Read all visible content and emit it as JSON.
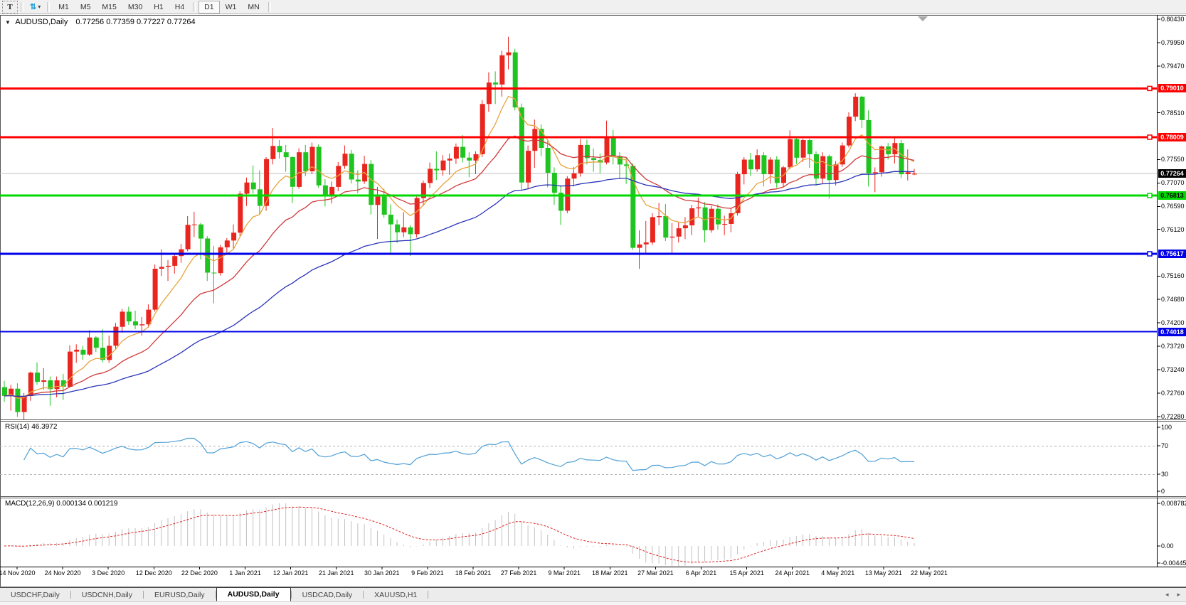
{
  "toolbar": {
    "text_tool": "T",
    "timeframes": [
      "M1",
      "M5",
      "M15",
      "M30",
      "H1",
      "H4",
      "D1",
      "W1",
      "MN"
    ],
    "active_timeframe": "D1"
  },
  "icons": {
    "symbol_dropdown": "▼",
    "arrows_tool": "⇅",
    "toolbar_caret": "▾",
    "tab_scroll_left": "◂",
    "tab_scroll_right": "▸"
  },
  "chart": {
    "title": "AUDUSD,Daily",
    "ohlc_text": "0.77256 0.77359 0.77227 0.77264"
  },
  "chart_data": {
    "type": "candlestick",
    "symbol": "AUDUSD",
    "period": "Daily",
    "colors": {
      "bull_candle": "#e8251f",
      "bear_candle": "#1fc420",
      "ma_fast": "#e8a33d",
      "ma_mid": "#d03a3a",
      "ma_slow": "#2a35b8",
      "rsi_line": "#4f9fd6",
      "macd_histogram": "#c2c2c2",
      "macd_signal": "#dd2222",
      "resistance_line": "#ff0000",
      "support_green_line": "#00d800",
      "support_blue_line": "#0000e8",
      "current_price_line": "#c0c0c0",
      "current_price_badge_bg": "#000000"
    },
    "candles": [
      [
        0.7288,
        0.7301,
        0.7258,
        0.727
      ],
      [
        0.727,
        0.7293,
        0.724,
        0.7285
      ],
      [
        0.7285,
        0.7296,
        0.7227,
        0.7237
      ],
      [
        0.7237,
        0.7276,
        0.7222,
        0.727
      ],
      [
        0.727,
        0.732,
        0.726,
        0.7318
      ],
      [
        0.7318,
        0.7339,
        0.7293,
        0.7299
      ],
      [
        0.7299,
        0.7327,
        0.7283,
        0.7302
      ],
      [
        0.7302,
        0.731,
        0.725,
        0.7284
      ],
      [
        0.7284,
        0.731,
        0.7267,
        0.7302
      ],
      [
        0.7302,
        0.7315,
        0.7262,
        0.7289
      ],
      [
        0.7289,
        0.7374,
        0.7287,
        0.7361
      ],
      [
        0.7361,
        0.7376,
        0.7338,
        0.7365
      ],
      [
        0.7365,
        0.7373,
        0.7344,
        0.7355
      ],
      [
        0.7355,
        0.7405,
        0.7352,
        0.739
      ],
      [
        0.739,
        0.7393,
        0.736,
        0.7369
      ],
      [
        0.7369,
        0.7407,
        0.7339,
        0.7344
      ],
      [
        0.7344,
        0.7394,
        0.7338,
        0.7373
      ],
      [
        0.7373,
        0.742,
        0.7365,
        0.7412
      ],
      [
        0.7412,
        0.7449,
        0.74,
        0.7443
      ],
      [
        0.7443,
        0.7453,
        0.7416,
        0.7423
      ],
      [
        0.7423,
        0.7445,
        0.7407,
        0.7415
      ],
      [
        0.7415,
        0.7432,
        0.7394,
        0.7417
      ],
      [
        0.7417,
        0.7458,
        0.741,
        0.7447
      ],
      [
        0.7447,
        0.754,
        0.7443,
        0.7531
      ],
      [
        0.7531,
        0.7571,
        0.7516,
        0.7535
      ],
      [
        0.7535,
        0.7549,
        0.7506,
        0.7537
      ],
      [
        0.7537,
        0.7563,
        0.7521,
        0.7557
      ],
      [
        0.7557,
        0.7582,
        0.7543,
        0.7571
      ],
      [
        0.7571,
        0.7639,
        0.7567,
        0.7621
      ],
      [
        0.7621,
        0.7648,
        0.7596,
        0.7622
      ],
      [
        0.7622,
        0.7625,
        0.755,
        0.7593
      ],
      [
        0.7593,
        0.7598,
        0.7506,
        0.7523
      ],
      [
        0.7523,
        0.7578,
        0.746,
        0.7522
      ],
      [
        0.7522,
        0.758,
        0.7517,
        0.7575
      ],
      [
        0.7575,
        0.7594,
        0.756,
        0.7589
      ],
      [
        0.7589,
        0.7622,
        0.7572,
        0.7605
      ],
      [
        0.7605,
        0.769,
        0.7598,
        0.7685
      ],
      [
        0.7685,
        0.7718,
        0.766,
        0.7708
      ],
      [
        0.7708,
        0.7743,
        0.7685,
        0.7694
      ],
      [
        0.7694,
        0.7733,
        0.7642,
        0.766
      ],
      [
        0.766,
        0.776,
        0.765,
        0.7756
      ],
      [
        0.7756,
        0.782,
        0.7745,
        0.7783
      ],
      [
        0.7783,
        0.7795,
        0.7757,
        0.777
      ],
      [
        0.777,
        0.7785,
        0.773,
        0.776
      ],
      [
        0.776,
        0.7762,
        0.7666,
        0.7699
      ],
      [
        0.7699,
        0.7778,
        0.7695,
        0.777
      ],
      [
        0.777,
        0.7785,
        0.7721,
        0.7731
      ],
      [
        0.7731,
        0.779,
        0.7725,
        0.7781
      ],
      [
        0.7781,
        0.7786,
        0.7697,
        0.7702
      ],
      [
        0.7702,
        0.7715,
        0.7659,
        0.7683
      ],
      [
        0.7683,
        0.771,
        0.7665,
        0.7699
      ],
      [
        0.7699,
        0.775,
        0.769,
        0.7742
      ],
      [
        0.7742,
        0.7784,
        0.7736,
        0.7767
      ],
      [
        0.7767,
        0.7775,
        0.7706,
        0.7714
      ],
      [
        0.7714,
        0.7733,
        0.7686,
        0.771
      ],
      [
        0.771,
        0.7763,
        0.7705,
        0.7746
      ],
      [
        0.7746,
        0.7754,
        0.7642,
        0.7662
      ],
      [
        0.7662,
        0.7699,
        0.7592,
        0.7679
      ],
      [
        0.7679,
        0.7695,
        0.7636,
        0.7642
      ],
      [
        0.7642,
        0.7663,
        0.7564,
        0.7622
      ],
      [
        0.7622,
        0.7632,
        0.7584,
        0.7606
      ],
      [
        0.7606,
        0.7647,
        0.7596,
        0.7616
      ],
      [
        0.7616,
        0.762,
        0.7557,
        0.7602
      ],
      [
        0.7602,
        0.7679,
        0.7595,
        0.7676
      ],
      [
        0.7676,
        0.7712,
        0.766,
        0.7707
      ],
      [
        0.7707,
        0.7749,
        0.7697,
        0.7736
      ],
      [
        0.7736,
        0.7772,
        0.7713,
        0.7733
      ],
      [
        0.7733,
        0.7764,
        0.7722,
        0.7753
      ],
      [
        0.7753,
        0.7767,
        0.7724,
        0.7757
      ],
      [
        0.7757,
        0.7788,
        0.7746,
        0.7781
      ],
      [
        0.7781,
        0.7805,
        0.7749,
        0.7759
      ],
      [
        0.7759,
        0.777,
        0.7719,
        0.7753
      ],
      [
        0.7753,
        0.7772,
        0.7725,
        0.7766
      ],
      [
        0.7766,
        0.7877,
        0.776,
        0.7869
      ],
      [
        0.7869,
        0.7934,
        0.7853,
        0.7913
      ],
      [
        0.7913,
        0.7936,
        0.7869,
        0.7909
      ],
      [
        0.7909,
        0.7978,
        0.7884,
        0.7969
      ],
      [
        0.7969,
        0.8007,
        0.794,
        0.7975
      ],
      [
        0.7975,
        0.7982,
        0.7856,
        0.7862
      ],
      [
        0.7862,
        0.787,
        0.7692,
        0.7708
      ],
      [
        0.7708,
        0.7784,
        0.7694,
        0.7773
      ],
      [
        0.7773,
        0.7837,
        0.7738,
        0.7818
      ],
      [
        0.7818,
        0.7827,
        0.7762,
        0.7779
      ],
      [
        0.7779,
        0.7794,
        0.7698,
        0.7728
      ],
      [
        0.7728,
        0.7739,
        0.7662,
        0.7687
      ],
      [
        0.7687,
        0.7702,
        0.7621,
        0.765
      ],
      [
        0.765,
        0.7721,
        0.7645,
        0.7716
      ],
      [
        0.7716,
        0.774,
        0.77,
        0.7727
      ],
      [
        0.7727,
        0.7797,
        0.772,
        0.7785
      ],
      [
        0.7785,
        0.7796,
        0.7745,
        0.7758
      ],
      [
        0.7758,
        0.7778,
        0.773,
        0.7754
      ],
      [
        0.7754,
        0.7767,
        0.7727,
        0.7749
      ],
      [
        0.7749,
        0.7835,
        0.7745,
        0.78
      ],
      [
        0.78,
        0.7816,
        0.7745,
        0.7762
      ],
      [
        0.7762,
        0.777,
        0.7717,
        0.7745
      ],
      [
        0.7745,
        0.7758,
        0.7705,
        0.7742
      ],
      [
        0.7742,
        0.7747,
        0.757,
        0.7574
      ],
      [
        0.7574,
        0.761,
        0.7531,
        0.7581
      ],
      [
        0.7581,
        0.7629,
        0.7562,
        0.7585
      ],
      [
        0.7585,
        0.7645,
        0.758,
        0.7637
      ],
      [
        0.7637,
        0.7666,
        0.762,
        0.7639
      ],
      [
        0.7639,
        0.7664,
        0.7588,
        0.7595
      ],
      [
        0.7595,
        0.7625,
        0.7562,
        0.7597
      ],
      [
        0.7597,
        0.7626,
        0.7585,
        0.7614
      ],
      [
        0.7614,
        0.7637,
        0.7592,
        0.762
      ],
      [
        0.762,
        0.7662,
        0.76,
        0.7655
      ],
      [
        0.7655,
        0.7677,
        0.7637,
        0.7657
      ],
      [
        0.7657,
        0.7668,
        0.7585,
        0.761
      ],
      [
        0.761,
        0.766,
        0.7605,
        0.7654
      ],
      [
        0.7654,
        0.7663,
        0.7611,
        0.7622
      ],
      [
        0.7622,
        0.764,
        0.76,
        0.7623
      ],
      [
        0.7623,
        0.7656,
        0.7606,
        0.7645
      ],
      [
        0.7645,
        0.773,
        0.764,
        0.7725
      ],
      [
        0.7725,
        0.776,
        0.7704,
        0.7755
      ],
      [
        0.7755,
        0.7769,
        0.7721,
        0.7735
      ],
      [
        0.7735,
        0.7776,
        0.773,
        0.7764
      ],
      [
        0.7764,
        0.777,
        0.77,
        0.7725
      ],
      [
        0.7725,
        0.776,
        0.7706,
        0.7755
      ],
      [
        0.7755,
        0.7762,
        0.7697,
        0.7707
      ],
      [
        0.7707,
        0.7742,
        0.7698,
        0.7739
      ],
      [
        0.7739,
        0.7815,
        0.7735,
        0.7797
      ],
      [
        0.7797,
        0.7802,
        0.7746,
        0.7759
      ],
      [
        0.7759,
        0.7798,
        0.775,
        0.7795
      ],
      [
        0.7795,
        0.7798,
        0.7738,
        0.7766
      ],
      [
        0.7766,
        0.7772,
        0.7701,
        0.7716
      ],
      [
        0.7716,
        0.777,
        0.7706,
        0.7762
      ],
      [
        0.7762,
        0.7765,
        0.7675,
        0.7713
      ],
      [
        0.7713,
        0.7752,
        0.7702,
        0.7745
      ],
      [
        0.7745,
        0.779,
        0.774,
        0.7784
      ],
      [
        0.7784,
        0.7852,
        0.778,
        0.7843
      ],
      [
        0.7843,
        0.7891,
        0.7834,
        0.7884
      ],
      [
        0.7884,
        0.7886,
        0.782,
        0.7836
      ],
      [
        0.7836,
        0.7856,
        0.77,
        0.7727
      ],
      [
        0.7727,
        0.7739,
        0.7688,
        0.7729
      ],
      [
        0.7729,
        0.7784,
        0.772,
        0.7782
      ],
      [
        0.7782,
        0.7789,
        0.7755,
        0.7766
      ],
      [
        0.7766,
        0.78,
        0.7747,
        0.7789
      ],
      [
        0.7789,
        0.7795,
        0.7717,
        0.7725
      ],
      [
        0.7725,
        0.7776,
        0.7712,
        0.7729
      ],
      [
        0.7726,
        0.7736,
        0.7723,
        0.7726
      ]
    ],
    "moving_averages": [
      {
        "name": "ma-fast",
        "period": 8,
        "color": "#e8a33d"
      },
      {
        "name": "ma-mid",
        "period": 21,
        "color": "#d03a3a"
      },
      {
        "name": "ma-slow",
        "period": 55,
        "color": "#2a35b8"
      }
    ],
    "x_tick_labels": [
      "14 Nov 2020",
      "24 Nov 2020",
      "3 Dec 2020",
      "12 Dec 2020",
      "22 Dec 2020",
      "1 Jan 2021",
      "12 Jan 2021",
      "21 Jan 2021",
      "30 Jan 2021",
      "9 Feb 2021",
      "18 Feb 2021",
      "27 Feb 2021",
      "9 Mar 2021",
      "18 Mar 2021",
      "27 Mar 2021",
      "6 Apr 2021",
      "15 Apr 2021",
      "24 Apr 2021",
      "4 May 2021",
      "13 May 2021",
      "22 May 2021"
    ],
    "y_axis_ticks": [
      {
        "label": "0.80430",
        "price": 0.8043
      },
      {
        "label": "0.79950",
        "price": 0.7995
      },
      {
        "label": "0.79470",
        "price": 0.7947
      },
      {
        "label": "0.78510",
        "price": 0.7851
      },
      {
        "label": "0.77550",
        "price": 0.7755
      },
      {
        "label": "0.77070",
        "price": 0.7707
      },
      {
        "label": "0.76590",
        "price": 0.7659
      },
      {
        "label": "0.76120",
        "price": 0.7612
      },
      {
        "label": "0.75160",
        "price": 0.7516
      },
      {
        "label": "0.74680",
        "price": 0.7468
      },
      {
        "label": "0.74200",
        "price": 0.742
      },
      {
        "label": "0.73720",
        "price": 0.7372
      },
      {
        "label": "0.73240",
        "price": 0.7324
      },
      {
        "label": "0.72760",
        "price": 0.7276
      },
      {
        "label": "0.72280",
        "price": 0.7228
      }
    ],
    "price_lines": [
      {
        "label": "0.79010",
        "price": 0.7901,
        "color": "#ff0000",
        "width": 3,
        "handle": true,
        "text": "#ffffff"
      },
      {
        "label": "0.78009",
        "price": 0.78009,
        "color": "#ff0000",
        "width": 3,
        "handle": true,
        "text": "#ffffff"
      },
      {
        "label": "0.76813",
        "price": 0.76813,
        "color": "#00d800",
        "width": 3,
        "handle": true,
        "text": "#000000"
      },
      {
        "label": "0.75617",
        "price": 0.75617,
        "color": "#0000e8",
        "width": 3,
        "handle": true,
        "text": "#ffffff"
      },
      {
        "label": "0.74018",
        "price": 0.74018,
        "color": "#0000e8",
        "width": 2,
        "handle": false,
        "text": "#ffffff"
      }
    ],
    "current_price": {
      "label": "0.77264",
      "price": 0.77264
    },
    "rsi": {
      "label": "RSI(14) 46.3972",
      "period": 14,
      "value": 46.3972,
      "levels": [
        70,
        30
      ],
      "axis_labels": [
        {
          "label": "100",
          "value": 100
        },
        {
          "label": "70",
          "value": 70
        },
        {
          "label": "30",
          "value": 30
        },
        {
          "label": "0",
          "value": 0
        }
      ]
    },
    "macd": {
      "label": "MACD(12,26,9) 0.000134 0.001219",
      "fast": 12,
      "slow": 26,
      "signal_period": 9,
      "main_value": 0.000134,
      "signal_value": 0.001219,
      "axis_labels": [
        {
          "label": "0.008782",
          "pos": "top"
        },
        {
          "label": "0.00",
          "pos": "zero"
        },
        {
          "label": "-0.00445",
          "pos": "bottom"
        }
      ]
    }
  },
  "tabs": {
    "items": [
      "USDCHF,Daily",
      "USDCNH,Daily",
      "EURUSD,Daily",
      "AUDUSD,Daily",
      "USDCAD,Daily",
      "XAUUSD,H1"
    ],
    "active": "AUDUSD,Daily"
  }
}
